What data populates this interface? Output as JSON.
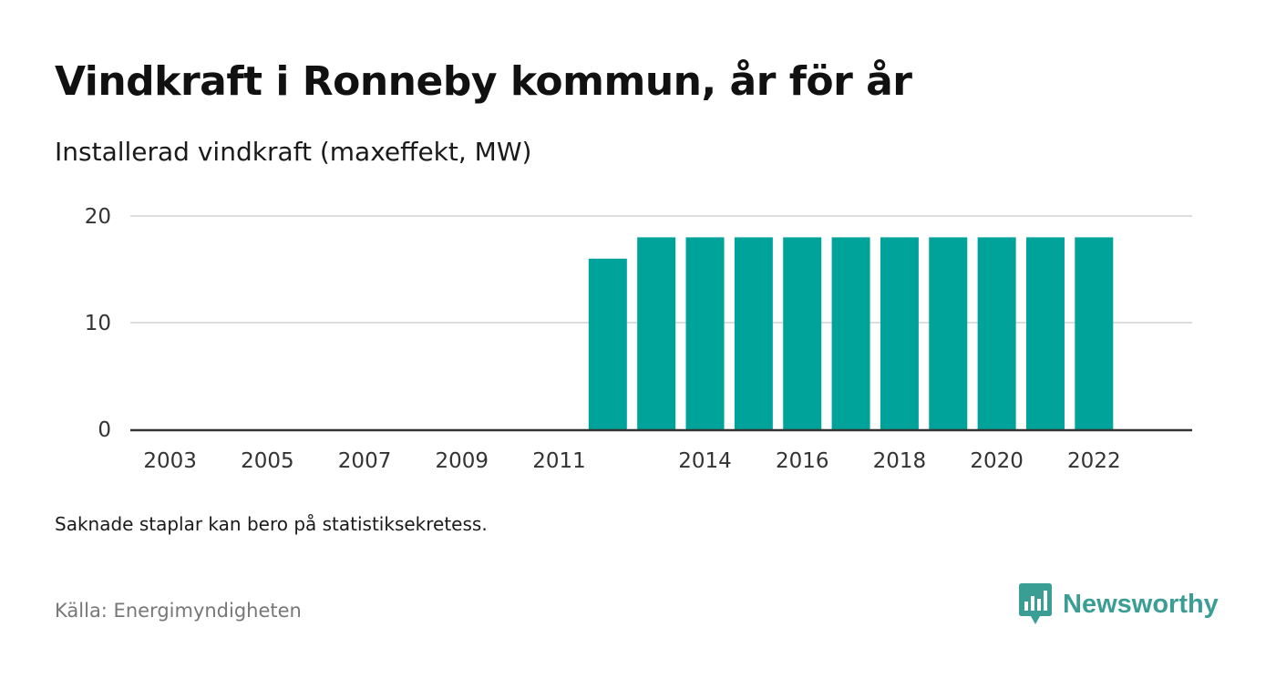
{
  "title": "Vindkraft i Ronneby kommun, år för år",
  "subtitle": "Installerad vindkraft (maxeffekt, MW)",
  "note": "Saknade staplar kan bero på statistiksekretess.",
  "source": "Källa: Energimyndigheten",
  "brand": {
    "name": "Newsworthy",
    "color": "#3a9e95",
    "icon": "chart-speech-bubble-icon"
  },
  "colors": {
    "bar": "#00a39a",
    "grid": "#dddddd",
    "axis": "#333333"
  },
  "chart_data": {
    "type": "bar",
    "categories": [
      "2003",
      "2004",
      "2005",
      "2006",
      "2007",
      "2008",
      "2009",
      "2010",
      "2011",
      "2012",
      "2013",
      "2014",
      "2015",
      "2016",
      "2017",
      "2018",
      "2019",
      "2020",
      "2021",
      "2022"
    ],
    "values": [
      0,
      0,
      0,
      0,
      0,
      0,
      0,
      0,
      0,
      16,
      18,
      18,
      18,
      18,
      18,
      18,
      18,
      18,
      18,
      18
    ],
    "x_tick_labels": [
      "2003",
      "2005",
      "2007",
      "2009",
      "2011",
      "2014",
      "2016",
      "2018",
      "2020",
      "2022"
    ],
    "y_ticks": [
      0,
      10,
      20
    ],
    "ylim": [
      0,
      20
    ],
    "title": "Vindkraft i Ronneby kommun, år för år",
    "ylabel": "Installerad vindkraft (maxeffekt, MW)",
    "xlabel": "",
    "grid": true,
    "legend": "none"
  }
}
